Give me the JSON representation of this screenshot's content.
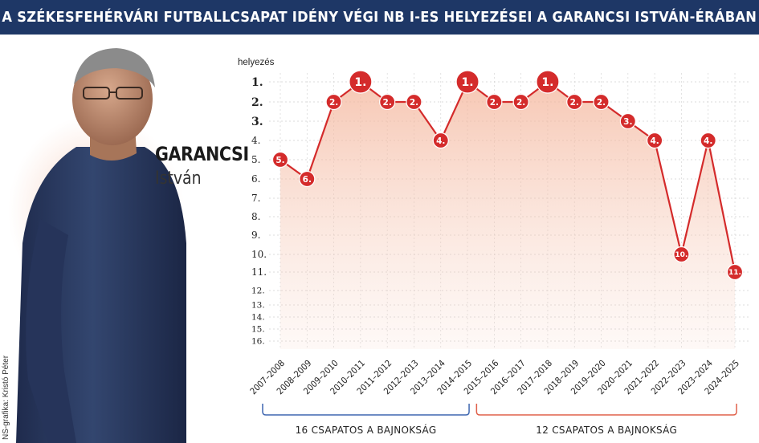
{
  "title": "A SZÉKESFEHÉRVÁRI FUTBALLCSAPAT IDÉNY VÉGI NB I-ES HELYEZÉSEI A GARANCSI ISTVÁN-ÉRÁBAN",
  "person": {
    "surname": "GARANCSI",
    "given_name": "István"
  },
  "credit": "NS-grafika: Kristó Péter",
  "colors": {
    "title_bg": "#1e3766",
    "line": "#d42b2b",
    "bracket_16": "#3f67b0",
    "bracket_12": "#e0604a"
  },
  "brackets": [
    {
      "label": "16 CSAPATOS A BAJNOKSÁG",
      "from": "2007–2008",
      "to": "2014–2015"
    },
    {
      "label": "12 CSAPATOS A BAJNOKSÁG",
      "from": "2015–2016",
      "to": "2024–2025"
    }
  ],
  "chart_data": {
    "type": "line",
    "ylabel": "helyezés",
    "y_inverted": true,
    "ylim": [
      1,
      16
    ],
    "y_ticks": [
      "1.",
      "2.",
      "3.",
      "4.",
      "5.",
      "6.",
      "7.",
      "8.",
      "9.",
      "10.",
      "11.",
      "12.",
      "13.",
      "14.",
      "15.",
      "16."
    ],
    "categories": [
      "2007–2008",
      "2008–2009",
      "2009–2010",
      "2010–2011",
      "2011–2012",
      "2012–2013",
      "2013–2014",
      "2014–2015",
      "2015–2016",
      "2016–2017",
      "2017–2018",
      "2018–2019",
      "2019–2020",
      "2020–2021",
      "2021–2022",
      "2022–2023",
      "2023–2024",
      "2024–2025"
    ],
    "values": [
      5,
      6,
      2,
      1,
      2,
      2,
      4,
      1,
      2,
      2,
      1,
      2,
      2,
      3,
      4,
      10,
      4,
      11
    ],
    "point_labels": [
      "5.",
      "6.",
      "2.",
      "1.",
      "2.",
      "2.",
      "4.",
      "1.",
      "2.",
      "2.",
      "1.",
      "2.",
      "2.",
      "3.",
      "4.",
      "10.",
      "4.",
      "11."
    ],
    "grid": true
  }
}
